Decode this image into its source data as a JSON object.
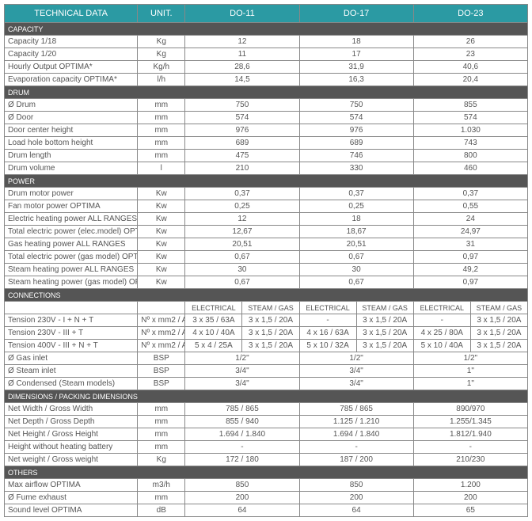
{
  "headers": {
    "h0": "TECHNICAL DATA",
    "h1": "UNIT.",
    "h2": "DO-11",
    "h3": "DO-17",
    "h4": "DO-23"
  },
  "sections": {
    "capacity": "CAPACITY",
    "drum": "DRUM",
    "power": "POWER",
    "connections": "CONNECTIONS",
    "dims": "DIMENSIONS / PACKING DIMENSIONS",
    "others": "OTHERS"
  },
  "sub": {
    "elec": "ELECTRICAL",
    "steam": "STEAM / GAS"
  },
  "cap": [
    {
      "l": "Capacity 1/18",
      "u": "Kg",
      "a": "12",
      "b": "18",
      "c": "26"
    },
    {
      "l": "Capacity 1/20",
      "u": "Kg",
      "a": "11",
      "b": "17",
      "c": "23"
    },
    {
      "l": "Hourly Output OPTIMA*",
      "u": "Kg/h",
      "a": "28,6",
      "b": "31,9",
      "c": "40,6"
    },
    {
      "l": "Evaporation capacity OPTIMA*",
      "u": "l/h",
      "a": "14,5",
      "b": "16,3",
      "c": "20,4"
    }
  ],
  "drm": [
    {
      "l": "Ø Drum",
      "u": "mm",
      "a": "750",
      "b": "750",
      "c": "855"
    },
    {
      "l": "Ø Door",
      "u": "mm",
      "a": "574",
      "b": "574",
      "c": "574"
    },
    {
      "l": "Door center height",
      "u": "mm",
      "a": "976",
      "b": "976",
      "c": "1.030"
    },
    {
      "l": "Load hole bottom height",
      "u": "mm",
      "a": "689",
      "b": "689",
      "c": "743"
    },
    {
      "l": "Drum length",
      "u": "mm",
      "a": "475",
      "b": "746",
      "c": "800"
    },
    {
      "l": "Drum volume",
      "u": "l",
      "a": "210",
      "b": "330",
      "c": "460"
    }
  ],
  "pwr": [
    {
      "l": "Drum motor power",
      "u": "Kw",
      "a": "0,37",
      "b": "0,37",
      "c": "0,37"
    },
    {
      "l": "Fan motor power OPTIMA",
      "u": "Kw",
      "a": "0,25",
      "b": "0,25",
      "c": "0,55"
    },
    {
      "l": "Electric heating power ALL RANGES",
      "u": "Kw",
      "a": "12",
      "b": "18",
      "c": "24"
    },
    {
      "l": "Total electric power (elec.model) OPT",
      "u": "Kw",
      "a": "12,67",
      "b": "18,67",
      "c": "24,97"
    },
    {
      "l": "Gas heating power ALL RANGES",
      "u": "Kw",
      "a": "20,51",
      "b": "20,51",
      "c": "31"
    },
    {
      "l": "Total electric power (gas model) OPT",
      "u": "Kw",
      "a": "0,67",
      "b": "0,67",
      "c": "0,97"
    },
    {
      "l": "Steam heating power ALL RANGES",
      "u": "Kw",
      "a": "30",
      "b": "30",
      "c": "49,2"
    },
    {
      "l": "Steam heating power (gas model) OPT",
      "u": "Kw",
      "a": "0,67",
      "b": "0,67",
      "c": "0,97"
    }
  ],
  "con": [
    {
      "l": "Tension 230V - I + N + T",
      "u": "Nº x mm2 / A",
      "a1": "3 x 35 / 63A",
      "a2": "3 x 1,5 / 20A",
      "b1": "-",
      "b2": "3 x 1,5 / 20A",
      "c1": "-",
      "c2": "3 x 1,5 / 20A"
    },
    {
      "l": "Tension 230V - III + T",
      "u": "Nº x mm2 / A",
      "a1": "4 x 10 / 40A",
      "a2": "3 x 1,5 / 20A",
      "b1": "4 x 16 / 63A",
      "b2": "3 x 1,5 / 20A",
      "c1": "4 x 25 / 80A",
      "c2": "3 x 1,5 / 20A"
    },
    {
      "l": "Tension 400V - III + N + T",
      "u": "Nº x mm2 / A",
      "a1": "5 x 4 / 25A",
      "a2": "3 x 1,5 / 20A",
      "b1": "5 x 10 / 32A",
      "b2": "3 x 1,5 / 20A",
      "c1": "5 x 10 / 40A",
      "c2": "3 x 1,5 / 20A"
    }
  ],
  "con2": [
    {
      "l": "Ø Gas inlet",
      "u": "BSP",
      "a": "1/2\"",
      "b": "1/2\"",
      "c": "1/2\""
    },
    {
      "l": "Ø Steam inlet",
      "u": "BSP",
      "a": "3/4\"",
      "b": "3/4\"",
      "c": "1\""
    },
    {
      "l": "Ø Condensed (Steam models)",
      "u": "BSP",
      "a": "3/4\"",
      "b": "3/4\"",
      "c": "1\""
    }
  ],
  "dim": [
    {
      "l": "Net Width / Gross Width",
      "u": "mm",
      "a": "785 / 865",
      "b": "785 / 865",
      "c": "890/970"
    },
    {
      "l": "Net Depth / Gross Depth",
      "u": "mm",
      "a": "855 / 940",
      "b": "1.125 / 1.210",
      "c": "1.255/1.345"
    },
    {
      "l": "Net Height / Gross Height",
      "u": "mm",
      "a": "1.694 / 1.840",
      "b": "1.694 / 1.840",
      "c": "1.812/1.940"
    },
    {
      "l": "Height without heating battery",
      "u": "mm",
      "a": "-",
      "b": "-",
      "c": "-"
    },
    {
      "l": "Net weight / Gross weight",
      "u": "Kg",
      "a": "172 / 180",
      "b": "187 / 200",
      "c": "210/230"
    }
  ],
  "oth": [
    {
      "l": "Max airflow OPTIMA",
      "u": "m3/h",
      "a": "850",
      "b": "850",
      "c": "1.200"
    },
    {
      "l": "Ø Fume exhaust",
      "u": "mm",
      "a": "200",
      "b": "200",
      "c": "200"
    },
    {
      "l": "Sound level OPTIMA",
      "u": "dB",
      "a": "64",
      "b": "64",
      "c": "65"
    }
  ]
}
